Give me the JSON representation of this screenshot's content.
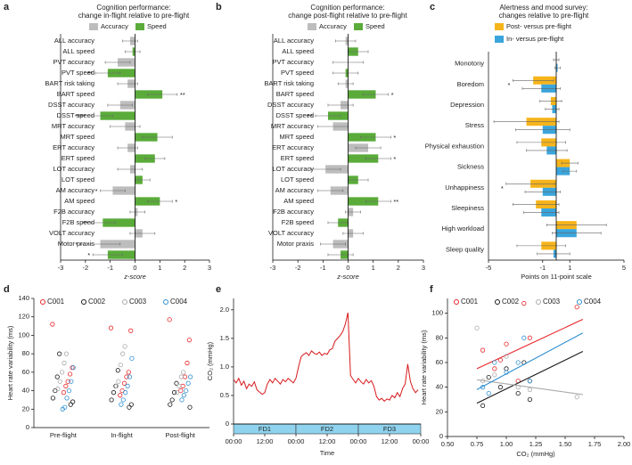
{
  "chart_data": [
    {
      "type": "bar",
      "orientation": "horizontal",
      "panel": "a",
      "title": "Cognition performance:",
      "subtitle": "change in-flight relative to pre-flight",
      "xlabel": "z-score",
      "categories": [
        "ALL accuracy",
        "ALL speed",
        "PVT accuracy",
        "PVT speed",
        "BART risk taking",
        "BART speed",
        "DSST accuracy",
        "DSST speed",
        "MRT accuracy",
        "MRT speed",
        "ERT accuracy",
        "ERT speed",
        "LOT accuracy",
        "LOT speed",
        "AM accuracy",
        "AM speed",
        "F2B accuracy",
        "F2B speed",
        "VOLT accuracy",
        "Motor praxis",
        null
      ],
      "series": [
        {
          "name": "Accuracy",
          "color": "#bdbdbd",
          "values": [
            -0.2,
            null,
            -0.7,
            null,
            -0.3,
            null,
            -0.6,
            null,
            -0.4,
            null,
            -0.3,
            null,
            -0.2,
            null,
            -0.9,
            null,
            0.1,
            null,
            0.3,
            -1.4,
            null
          ],
          "errors": [
            0.3,
            null,
            0.5,
            null,
            0.4,
            null,
            0.5,
            null,
            0.6,
            null,
            0.4,
            null,
            0.5,
            null,
            0.5,
            null,
            0.3,
            null,
            0.5,
            0.8,
            null
          ]
        },
        {
          "name": "Speed",
          "color": "#5aab3a",
          "values": [
            null,
            -0.1,
            null,
            -1.1,
            null,
            1.1,
            null,
            -1.4,
            null,
            0.9,
            null,
            0.8,
            null,
            0.3,
            null,
            1.0,
            null,
            -1.3,
            null,
            null,
            -1.1
          ],
          "errors": [
            null,
            0.3,
            null,
            0.5,
            null,
            0.6,
            null,
            0.5,
            null,
            0.6,
            null,
            0.4,
            null,
            0.3,
            null,
            0.5,
            null,
            0.5,
            null,
            null,
            0.6
          ]
        }
      ],
      "significance": [
        null,
        null,
        null,
        "**",
        null,
        "**",
        null,
        "****",
        null,
        null,
        null,
        null,
        null,
        null,
        "*",
        "*",
        null,
        "**",
        null,
        "*",
        "*"
      ],
      "xlim": [
        -3,
        3
      ],
      "xticks": [
        -3,
        -2,
        -1,
        0,
        1,
        2,
        3
      ]
    },
    {
      "type": "bar",
      "orientation": "horizontal",
      "panel": "b",
      "title": "Cognition performance:",
      "subtitle": "change post-flight relative to pre-flight",
      "xlabel": "z-score",
      "categories": [
        "ALL accuracy",
        "ALL speed",
        "PVT accuracy",
        "PVT speed",
        "BART risk taking",
        "BART speed",
        "DSST accuracy",
        "DSST speed",
        "MRT accuracy",
        "MRT speed",
        "ERT accuracy",
        "ERT speed",
        "LOT accuracy",
        "LOT speed",
        "AM accuracy",
        "AM speed",
        "F2B accuracy",
        "F2B speed",
        "VOLT accuracy",
        "Motor praxis",
        null
      ],
      "series": [
        {
          "name": "Accuracy",
          "color": "#bdbdbd",
          "values": [
            -0.1,
            null,
            0,
            null,
            -0.1,
            null,
            -0.3,
            null,
            -0.6,
            null,
            0.8,
            null,
            -0.9,
            null,
            -0.7,
            null,
            0.2,
            null,
            0.2,
            -0.6,
            null
          ],
          "errors": [
            0.4,
            null,
            0.6,
            null,
            0.3,
            null,
            0.5,
            null,
            0.6,
            null,
            0.5,
            null,
            0.6,
            null,
            0.5,
            null,
            0.3,
            null,
            0.4,
            0.5,
            null
          ]
        },
        {
          "name": "Speed",
          "color": "#5aab3a",
          "values": [
            null,
            0.4,
            null,
            -0.1,
            null,
            1.1,
            null,
            -0.8,
            null,
            1.1,
            null,
            1.2,
            null,
            0.4,
            null,
            1.2,
            null,
            -0.4,
            null,
            null,
            -0.3
          ],
          "errors": [
            null,
            0.4,
            null,
            0.5,
            null,
            0.5,
            null,
            0.5,
            null,
            0.6,
            null,
            0.5,
            null,
            0.4,
            null,
            0.5,
            null,
            0.4,
            null,
            null,
            0.5
          ]
        }
      ],
      "significance": [
        null,
        null,
        null,
        null,
        null,
        "*",
        null,
        "**",
        null,
        "*",
        null,
        "*",
        null,
        null,
        null,
        "**",
        null,
        null,
        null,
        null,
        null
      ],
      "xlim": [
        -3,
        3
      ],
      "xticks": [
        -3,
        -2,
        -1,
        0,
        1,
        2,
        3
      ]
    },
    {
      "type": "bar",
      "orientation": "horizontal",
      "panel": "c",
      "title": "Alertness and mood survey:",
      "subtitle": "changes relative to pre-flight",
      "xlabel": "Points on 11-point scale",
      "categories": [
        "Monotony",
        "Boredom",
        "Depression",
        "Stress",
        "Physical exhaustion",
        "Sickness",
        "Unhappiness",
        "Sleepiness",
        "High workload",
        "Sleep quality"
      ],
      "series": [
        {
          "name": "Post- versus pre-flight",
          "color": "#f6b41b",
          "values": [
            0,
            -1.7,
            -0.4,
            -2.2,
            -1.1,
            1.0,
            -1.9,
            -1.5,
            1.5,
            -1.1
          ],
          "errors": [
            0.2,
            1.5,
            0.8,
            2.4,
            1.8,
            0.6,
            1.8,
            1.7,
            2.2,
            1.8
          ]
        },
        {
          "name": "In- versus pre-flight",
          "color": "#3aa5dc",
          "values": [
            0.1,
            -1.1,
            -0.3,
            -1.0,
            -0.7,
            1.0,
            -1.0,
            -1.1,
            1.5,
            -0.2
          ],
          "errors": [
            0.2,
            1.4,
            0.5,
            2.0,
            1.5,
            0.5,
            1.3,
            1.3,
            1.8,
            1.2
          ]
        }
      ],
      "significance": [
        null,
        "*",
        null,
        null,
        null,
        null,
        "*",
        null,
        null,
        null
      ],
      "xlim": [
        -5,
        5
      ],
      "xticks": [
        -5,
        -1,
        1,
        5
      ]
    },
    {
      "type": "strip",
      "panel": "d",
      "ylabel": "Heart rate variability (ms)",
      "categories": [
        "Pre-flight",
        "In-flight",
        "Post-flight"
      ],
      "series": [
        {
          "name": "C001",
          "color": "#e8262a",
          "values": [
            [
              112,
              65,
              58,
              50,
              45,
              38
            ],
            [
              108,
              105,
              60,
              55,
              48,
              40,
              35
            ],
            [
              117,
              95,
              70,
              55,
              45,
              40
            ]
          ]
        },
        {
          "name": "C002",
          "color": "#1a1a1a",
          "values": [
            [
              80,
              55,
              40,
              32,
              28,
              25
            ],
            [
              62,
              45,
              38,
              30,
              25,
              22
            ],
            [
              48,
              38,
              30,
              25,
              22
            ]
          ]
        },
        {
          "name": "C003",
          "color": "#aaaaaa",
          "values": [
            [
              80,
              70,
              60,
              50,
              42
            ],
            [
              88,
              80,
              68,
              50,
              45
            ],
            [
              60,
              55,
              45,
              38
            ]
          ]
        },
        {
          "name": "C004",
          "color": "#2f8fd0",
          "values": [
            [
              65,
              50,
              40,
              32,
              22,
              20
            ],
            [
              75,
              55,
              45,
              38,
              30,
              25
            ],
            [
              55,
              48,
              40,
              35,
              30
            ]
          ]
        }
      ],
      "ylim": [
        0,
        140
      ],
      "yticks": [
        0,
        20,
        40,
        60,
        80,
        100,
        120,
        140
      ]
    },
    {
      "type": "line",
      "panel": "e",
      "ylabel": "CO₂ (mmHg)",
      "xlabel": "Time",
      "color": "#d7191c",
      "x": [
        0,
        1,
        2,
        3,
        4,
        5,
        6,
        7,
        8,
        9,
        10,
        11,
        12,
        13,
        14,
        15,
        16,
        17,
        18,
        19,
        20,
        21,
        22,
        23,
        24,
        25,
        26,
        27,
        28,
        29,
        30,
        31,
        32,
        33,
        34,
        35,
        36,
        37,
        38,
        39,
        40,
        41,
        42,
        43,
        44,
        45,
        46,
        47,
        48,
        49,
        50,
        51,
        52,
        53,
        54,
        55,
        56,
        57,
        58,
        59,
        60,
        61,
        62,
        63,
        64,
        65,
        66,
        67,
        68,
        69,
        70,
        71
      ],
      "values": [
        0.78,
        0.72,
        0.8,
        0.68,
        0.75,
        0.62,
        0.7,
        0.66,
        0.74,
        0.6,
        0.56,
        0.52,
        0.55,
        0.7,
        0.78,
        0.72,
        0.8,
        0.75,
        0.7,
        0.78,
        0.74,
        0.8,
        0.76,
        0.72,
        0.8,
        1.0,
        1.18,
        1.22,
        1.25,
        1.2,
        1.28,
        1.24,
        1.22,
        1.26,
        1.2,
        1.24,
        1.22,
        1.3,
        1.32,
        1.45,
        1.5,
        1.55,
        1.62,
        1.75,
        1.95,
        0.85,
        0.78,
        0.72,
        0.8,
        0.74,
        0.7,
        0.78,
        0.72,
        0.76,
        0.66,
        0.48,
        0.42,
        0.45,
        0.4,
        0.44,
        0.42,
        0.5,
        0.46,
        0.55,
        0.48,
        0.62,
        0.7,
        1.05,
        0.75,
        0.62,
        0.55,
        0.6
      ],
      "bands": [
        {
          "label": "FD1",
          "start": 0,
          "end": 24
        },
        {
          "label": "FD2",
          "start": 24,
          "end": 48
        },
        {
          "label": "FD3",
          "start": 48,
          "end": 72
        }
      ],
      "band_color": "#8fd3ee",
      "xlim": [
        0,
        72
      ],
      "xticks": [
        {
          "value": 0,
          "label": "00:00"
        },
        {
          "value": 12,
          "label": "12:00"
        },
        {
          "value": 24,
          "label": "00:00"
        },
        {
          "value": 36,
          "label": "12:00"
        },
        {
          "value": 48,
          "label": "00:00"
        },
        {
          "value": 60,
          "label": "12:00"
        },
        {
          "value": 72,
          "label": "00:00"
        }
      ],
      "ylim": [
        0,
        2.2
      ],
      "yticks": [
        0,
        0.5,
        {
          "value": 1,
          "label": "1.0"
        },
        1.5,
        {
          "value": 2,
          "label": "2.0"
        }
      ]
    },
    {
      "type": "scatter",
      "panel": "f",
      "xlabel": "CO₂ (mmHg)",
      "ylabel": "Heart rate variability (ms)",
      "fit_x": [
        0.75,
        1.65
      ],
      "series": [
        {
          "name": "C001",
          "color": "#e8262a",
          "x": [
            0.8,
            0.9,
            0.95,
            1.0,
            1.1,
            1.15,
            1.2,
            1.6
          ],
          "y": [
            70,
            55,
            62,
            75,
            45,
            108,
            80,
            105
          ],
          "fit_y": [
            55,
            95
          ]
        },
        {
          "name": "C002",
          "color": "#1a1a1a",
          "x": [
            0.8,
            0.85,
            0.95,
            1.0,
            1.1,
            1.2,
            1.2,
            1.15
          ],
          "y": [
            25,
            48,
            40,
            55,
            35,
            45,
            30,
            60
          ],
          "fit_y": [
            27,
            69
          ]
        },
        {
          "name": "C003",
          "color": "#aaaaaa",
          "x": [
            0.75,
            0.8,
            0.9,
            1.0,
            1.1,
            1.2,
            1.6
          ],
          "y": [
            88,
            45,
            50,
            65,
            40,
            38,
            32
          ],
          "fit_y": [
            46,
            34
          ]
        },
        {
          "name": "C004",
          "color": "#2f8fd0",
          "x": [
            0.8,
            0.85,
            0.9,
            1.0,
            1.1,
            1.15,
            1.2
          ],
          "y": [
            40,
            35,
            60,
            52,
            60,
            80,
            45
          ],
          "fit_y": [
            38,
            84
          ]
        }
      ],
      "xlim": [
        0.5,
        2.0
      ],
      "xticks": [
        {
          "value": 0.5,
          "label": "0.50"
        },
        0.75,
        {
          "value": 1,
          "label": "1.00"
        },
        1.25,
        {
          "value": 1.5,
          "label": "1.50"
        },
        1.75,
        {
          "value": 2,
          "label": "2.00"
        }
      ],
      "ylim": [
        0,
        112
      ],
      "yticks": [
        0,
        20,
        40,
        60,
        80,
        100
      ]
    }
  ]
}
